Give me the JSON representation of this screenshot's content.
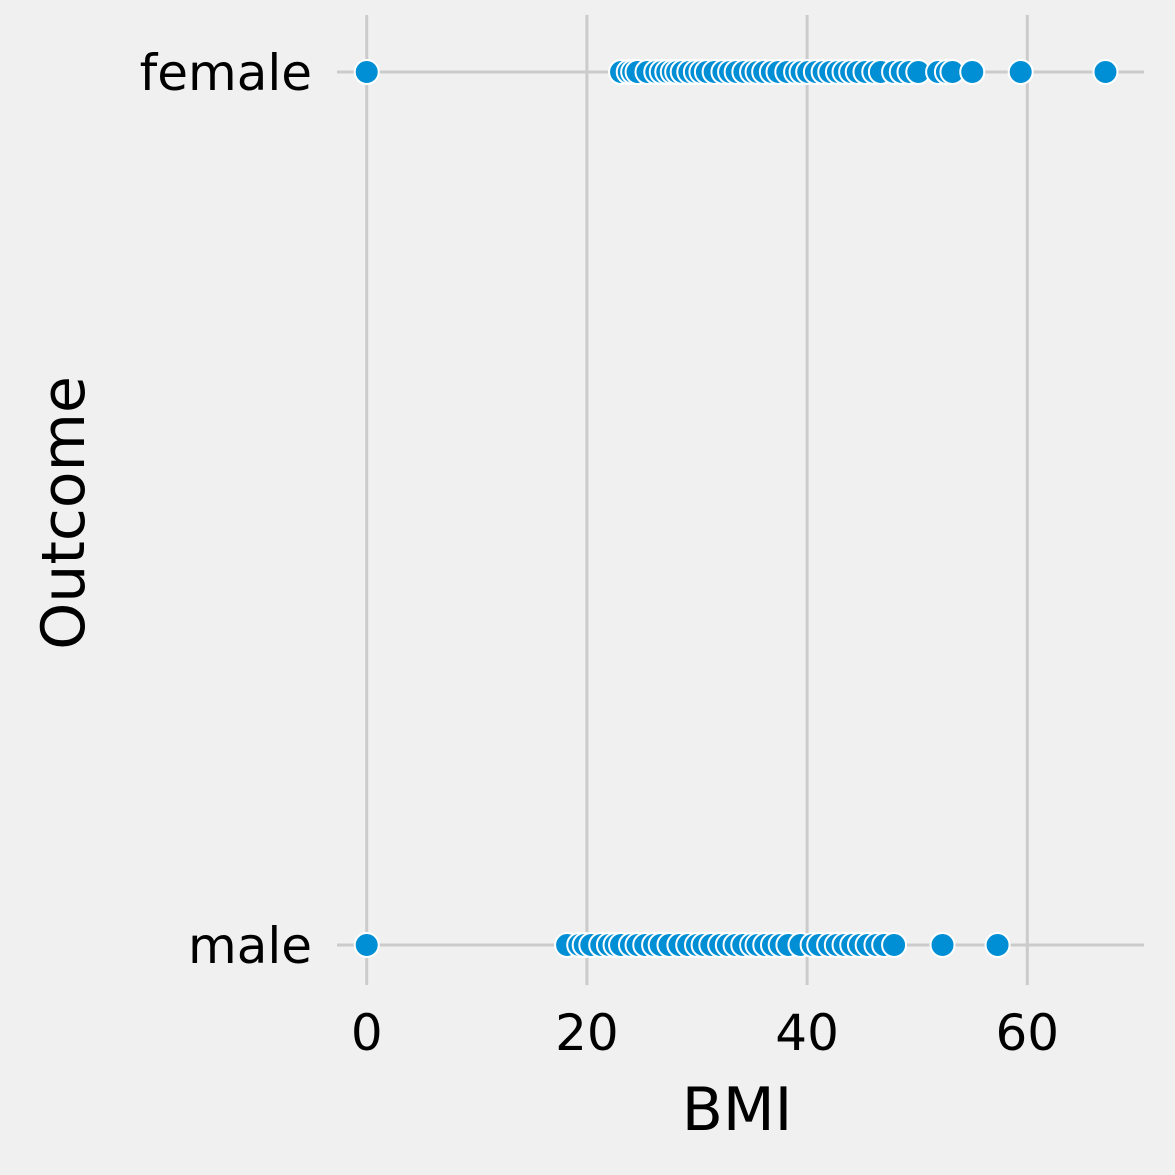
{
  "chart_data": {
    "type": "scatter",
    "title": "",
    "xlabel": "BMI",
    "ylabel": "Outcome",
    "xlim": [
      -2.7,
      70.6
    ],
    "x_ticks": [
      0,
      20,
      40,
      60
    ],
    "x_tick_labels": [
      "0",
      "20",
      "40",
      "60"
    ],
    "categories": [
      "female",
      "male"
    ],
    "grid": true,
    "point_color": "#008fd5",
    "point_edge_color": "#ffffff",
    "background_color": "#f0f0f0",
    "grid_color": "#cbcbcb",
    "series": [
      {
        "category": "female",
        "x": [
          0.0,
          23.1,
          23.8,
          24.2,
          24.6,
          25.5,
          26.3,
          26.8,
          27.3,
          27.8,
          28.2,
          28.7,
          29.3,
          29.9,
          30.4,
          30.9,
          31.6,
          32.4,
          33.0,
          33.6,
          34.3,
          35.0,
          35.5,
          36.1,
          36.8,
          37.4,
          38.2,
          39.0,
          39.5,
          40.1,
          40.8,
          41.5,
          42.1,
          42.8,
          43.4,
          44.0,
          44.6,
          45.3,
          46.1,
          46.7,
          47.9,
          48.6,
          49.3,
          50.1,
          51.9,
          52.7,
          53.2,
          55.0,
          59.4,
          67.1
        ]
      },
      {
        "category": "male",
        "x": [
          0.0,
          18.2,
          19.3,
          19.8,
          20.4,
          21.3,
          22.0,
          22.6,
          23.1,
          24.0,
          24.6,
          25.3,
          26.1,
          26.7,
          27.5,
          28.4,
          29.2,
          30.0,
          30.6,
          31.3,
          32.1,
          32.8,
          33.5,
          34.2,
          35.0,
          35.5,
          36.2,
          36.9,
          37.6,
          38.3,
          39.4,
          40.5,
          41.1,
          42.0,
          42.7,
          43.4,
          44.1,
          44.8,
          45.5,
          46.3,
          47.0,
          47.9,
          52.3,
          57.3
        ]
      }
    ]
  }
}
